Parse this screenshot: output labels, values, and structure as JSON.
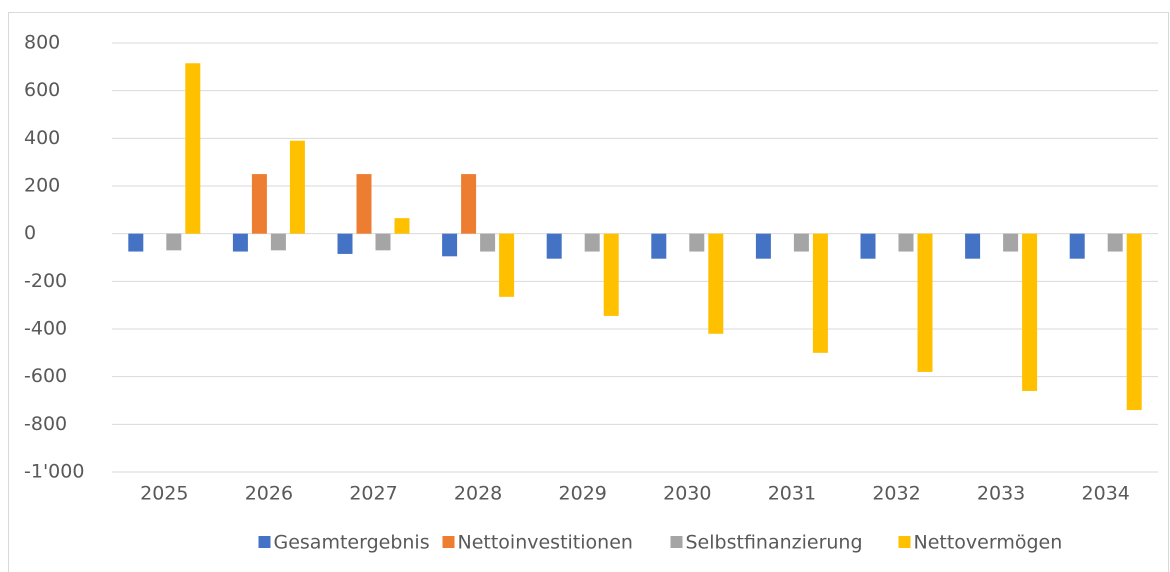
{
  "chart_data": {
    "type": "bar",
    "categories": [
      "2025",
      "2026",
      "2027",
      "2028",
      "2029",
      "2030",
      "2031",
      "2032",
      "2033",
      "2034"
    ],
    "series": [
      {
        "name": "Gesamtergebnis",
        "color": "#4472c4",
        "values": [
          -75,
          -75,
          -85,
          -95,
          -105,
          -105,
          -105,
          -105,
          -105,
          -105
        ]
      },
      {
        "name": "Nettoinvestitionen",
        "color": "#ed7d31",
        "values": [
          0,
          250,
          250,
          250,
          0,
          0,
          0,
          0,
          0,
          0
        ]
      },
      {
        "name": "Selbstfinanzierung",
        "color": "#a5a5a5",
        "values": [
          -70,
          -70,
          -70,
          -75,
          -75,
          -75,
          -75,
          -75,
          -75,
          -75
        ]
      },
      {
        "name": "Nettovermögen",
        "color": "#ffc000",
        "values": [
          715,
          390,
          65,
          -265,
          -345,
          -420,
          -500,
          -580,
          -660,
          -740
        ]
      }
    ],
    "ylim": [
      -1000,
      800
    ],
    "yticks": [
      {
        "value": -1000,
        "label": "-1'000"
      },
      -800,
      -600,
      -400,
      -200,
      0,
      200,
      400,
      600,
      800
    ],
    "grid": true,
    "legend": "bottom"
  }
}
